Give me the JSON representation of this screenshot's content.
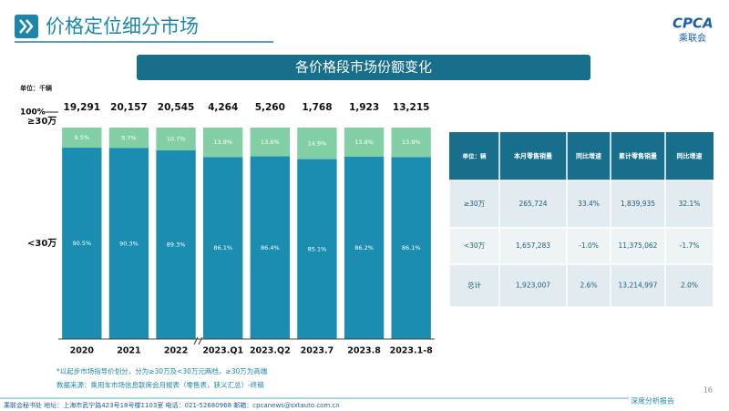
{
  "header": {
    "title": "价格定位细分市场",
    "logo": "CPCA",
    "logo_sub": "乘联会"
  },
  "chart_data": {
    "type": "stacked_bar",
    "title": "各价格段市场份额变化",
    "unit": "单位：千辆",
    "categories": [
      "2020",
      "2021",
      "2022",
      "2023.Q1",
      "2023.Q2",
      "2023.7",
      "2023.8",
      "2023.1-8"
    ],
    "series": [
      {
        "name": "<30万",
        "color": "#1a8db0",
        "values": [
          90.5,
          90.3,
          89.3,
          86.1,
          86.4,
          85.1,
          86.2,
          86.1
        ],
        "value_labels": [
          "90.5%",
          "90.3%",
          "89.3%",
          "86.1%",
          "86.4%",
          "85.1%",
          "86.2%",
          "86.1%"
        ]
      },
      {
        "name": "≥30万",
        "color": "#82cfa6",
        "values": [
          9.5,
          9.7,
          10.7,
          13.9,
          13.6,
          14.9,
          13.8,
          13.9
        ],
        "value_labels": [
          "9.5%",
          "9.7%",
          "10.7%",
          "13.9%",
          "13.6%",
          "14.9%",
          "13.8%",
          "13.9%"
        ]
      }
    ],
    "totals": {
      "values": [
        19291,
        20157,
        20545,
        4264,
        5260,
        1768,
        1923,
        13215
      ],
      "value_labels": [
        "19,291",
        "20,157",
        "20,545",
        "4,264",
        "5,260",
        "1,768",
        "1,923",
        "13,215"
      ]
    },
    "ylim": [
      0,
      100
    ],
    "yticks": [
      {
        "value": 100,
        "label": "100%"
      }
    ]
  },
  "table": {
    "header": [
      "单位：辆",
      "本月零售销量",
      "同比增速",
      "累计零售销量",
      "同比增速"
    ],
    "rows": [
      [
        "≥30万",
        "265,724",
        "33.4%",
        "1,839,935",
        "32.1%"
      ],
      [
        "<30万",
        "1,657,283",
        "-1.0%",
        "11,375,062",
        "-1.7%"
      ],
      [
        "总计",
        "1,923,007",
        "2.6%",
        "13,214,997",
        "2.0%"
      ]
    ]
  },
  "notes": [
    "*以起步市场指导价划分，分为≥30万及<30万元两档，≥30万为高端",
    "数据来源：乘用车市场信息联席会月报表（零售表，狭义汇总）-终稿"
  ],
  "footer": {
    "text": "乘联会秘书处   地址：上海市武宁路423号18号楼1103室   电话：021-52680968   邮箱：cpcanews@sxtauto.com.cn",
    "report": "深度分析报告",
    "page": "16"
  }
}
